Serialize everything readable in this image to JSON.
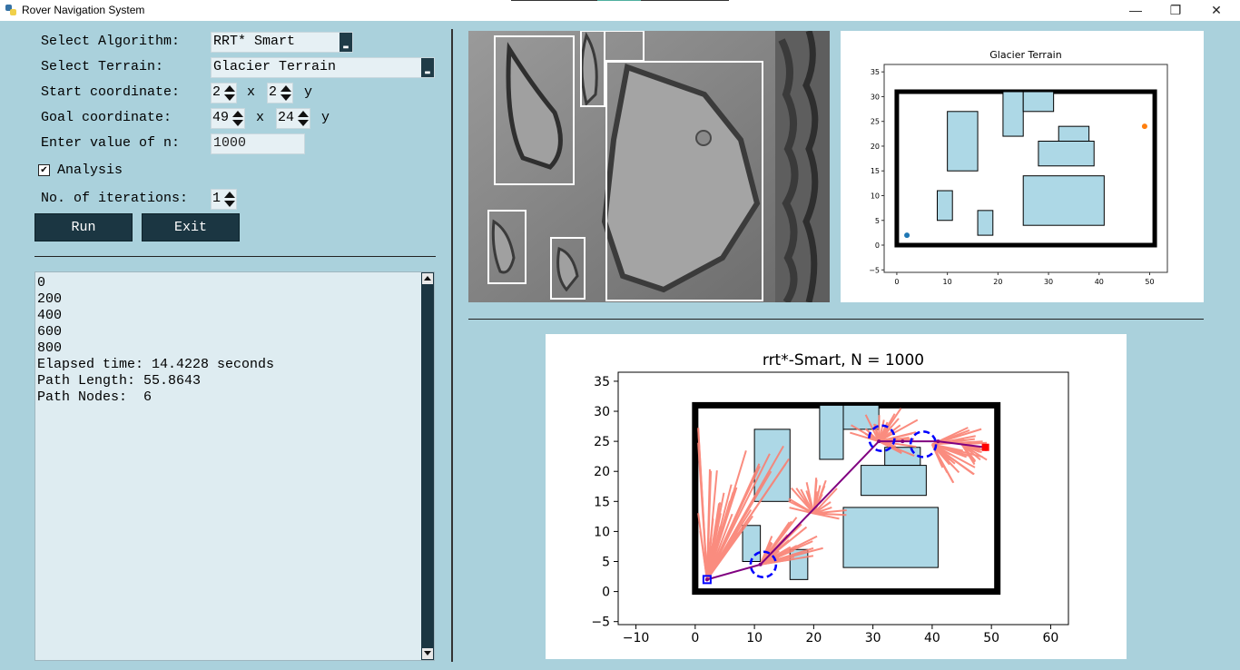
{
  "window": {
    "title": "Rover Navigation System",
    "minimize": "—",
    "restore": "❐",
    "close": "✕"
  },
  "form": {
    "algorithm_label": "Select Algorithm:",
    "algorithm_value": "RRT* Smart",
    "terrain_label": "Select Terrain:",
    "terrain_value": "Glacier Terrain",
    "start_label": "Start coordinate:",
    "start_x": "2",
    "start_y": "2",
    "goal_label": "Goal coordinate:",
    "goal_x": "49",
    "goal_y": "24",
    "x_sep": "x",
    "y_sep": "y",
    "n_label": "Enter value of n:",
    "n_value": "1000",
    "analysis_label": "Analysis",
    "analysis_checked": "✔",
    "iterations_label": "No. of iterations:",
    "iterations_value": "1",
    "run_label": "Run",
    "exit_label": "Exit"
  },
  "output": {
    "lines": [
      "0",
      "200",
      "400",
      "600",
      "800",
      "Elapsed time: 14.4228 seconds",
      "Path Length: 55.8643",
      "Path Nodes:  6"
    ]
  },
  "colors": {
    "background": "#aad1dc",
    "obstacle": "#add8e6",
    "tree": "#fa8072",
    "path": "#800080",
    "circle": "#0000ff",
    "start": "#1f77b4",
    "goal_small": "#ff7f0e",
    "goal_big": "#ff0000"
  },
  "terrain_plot": {
    "title": "Glacier Terrain",
    "xticks": [
      "0",
      "10",
      "20",
      "30",
      "40",
      "50"
    ],
    "yticks": [
      "35",
      "30",
      "25",
      "20",
      "15",
      "10",
      "5",
      "0",
      "−5"
    ]
  },
  "chart_data": {
    "type": "scatter",
    "title": "rrt*-Smart, N = 1000",
    "xlabel": "",
    "ylabel": "",
    "xlim": [
      -13,
      63
    ],
    "ylim": [
      -5.5,
      36.5
    ],
    "xticks": [
      -10,
      0,
      10,
      20,
      30,
      40,
      50,
      60
    ],
    "yticks": [
      -5,
      0,
      5,
      10,
      15,
      20,
      25,
      30,
      35
    ],
    "xtick_labels": [
      "−10",
      "0",
      "10",
      "20",
      "30",
      "40",
      "50",
      "60"
    ],
    "ytick_labels": [
      "−5",
      "0",
      "5",
      "10",
      "15",
      "20",
      "25",
      "30",
      "35"
    ],
    "boundary": [
      0,
      0,
      51,
      31
    ],
    "obstacles": [
      [
        10,
        15,
        6,
        12
      ],
      [
        8,
        5,
        3,
        6
      ],
      [
        16,
        2,
        3,
        5
      ],
      [
        21,
        22,
        4,
        9
      ],
      [
        25,
        27,
        6,
        4
      ],
      [
        32,
        21,
        6,
        3
      ],
      [
        28,
        16,
        11,
        5
      ],
      [
        25,
        4,
        16,
        10
      ]
    ],
    "start": [
      2,
      2
    ],
    "goal": [
      49,
      24
    ],
    "path": [
      [
        2,
        2
      ],
      [
        11,
        4.5
      ],
      [
        31,
        25
      ],
      [
        35,
        25
      ],
      [
        41,
        25
      ],
      [
        49,
        24
      ]
    ],
    "beacons": [
      [
        11.5,
        4.5
      ],
      [
        31.5,
        25.5
      ],
      [
        38.5,
        24.5
      ]
    ]
  }
}
